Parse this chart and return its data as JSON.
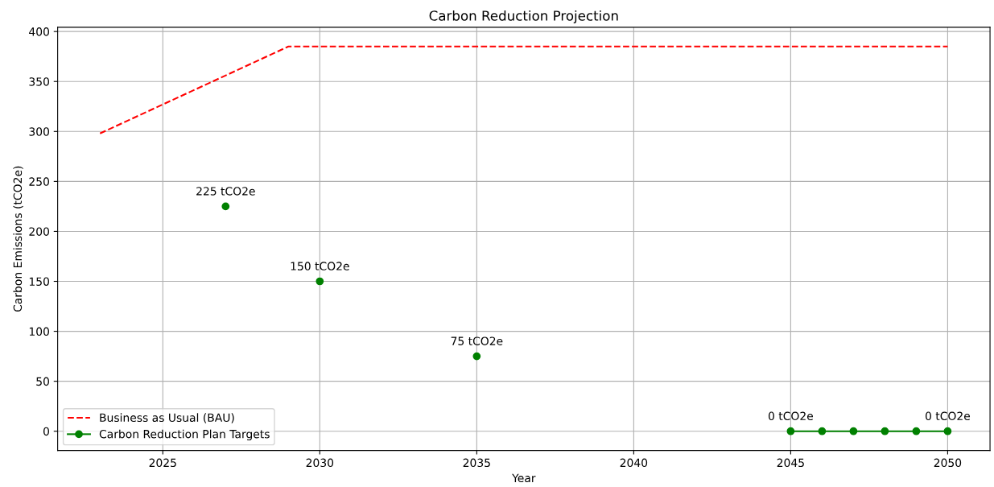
{
  "chart_data": {
    "type": "line",
    "title": "Carbon Reduction Projection",
    "xlabel": "Year",
    "ylabel": "Carbon Emissions (tCO2e)",
    "series": [
      {
        "name": "Business as Usual (BAU)",
        "color": "#ff0000",
        "line_style": "dashed",
        "marker": "none",
        "x": [
          2023,
          2029,
          2030,
          2035,
          2040,
          2045,
          2050
        ],
        "values": [
          298,
          385,
          385,
          385,
          385,
          385,
          385
        ]
      },
      {
        "name": "Carbon Reduction Plan Targets",
        "color": "#008000",
        "line_style": "solid",
        "marker": "circle",
        "x": [
          2027,
          2028,
          2030,
          2031,
          2035,
          2036,
          2045,
          2046,
          2047,
          2048,
          2049,
          2050
        ],
        "values": [
          225,
          null,
          150,
          null,
          75,
          null,
          0,
          0,
          0,
          0,
          0,
          0
        ]
      }
    ],
    "annotations": [
      {
        "text": "225 tCO2e",
        "x": 2027,
        "y": 225
      },
      {
        "text": "150 tCO2e",
        "x": 2030,
        "y": 150
      },
      {
        "text": "75 tCO2e",
        "x": 2035,
        "y": 75
      },
      {
        "text": "0 tCO2e",
        "x": 2045,
        "y": 0
      },
      {
        "text": "0 tCO2e",
        "x": 2050,
        "y": 0
      }
    ],
    "xlim": [
      2021.65,
      2051.35
    ],
    "xticks": [
      2025,
      2030,
      2035,
      2040,
      2045,
      2050
    ],
    "ylim": [
      -19.25,
      404.25
    ],
    "yticks": [
      0,
      50,
      100,
      150,
      200,
      250,
      300,
      350,
      400
    ],
    "grid": true,
    "legend": "bottom left"
  }
}
